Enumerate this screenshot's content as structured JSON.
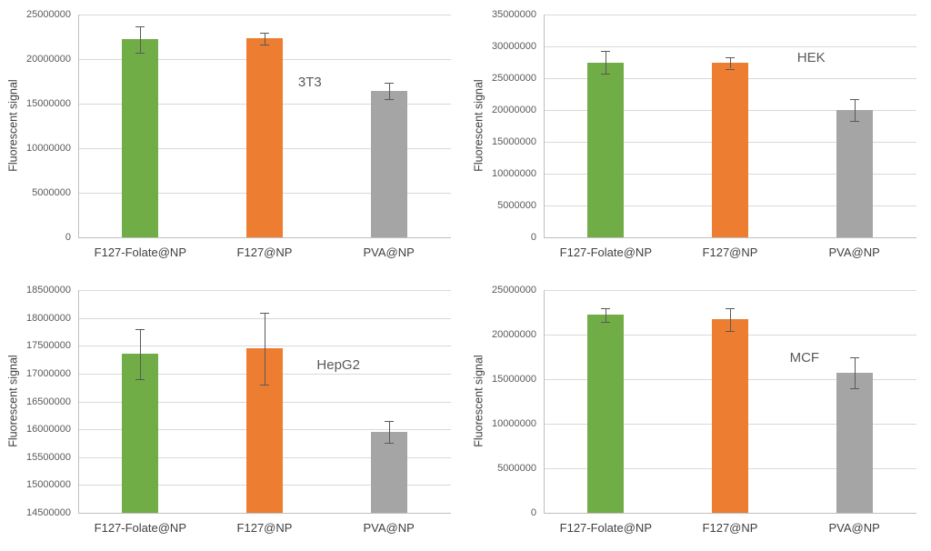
{
  "figure": {
    "background": "#ffffff"
  },
  "colors": {
    "bar_green": "#70ad47",
    "bar_orange": "#ed7d31",
    "bar_gray": "#a5a5a5",
    "gridline": "#d9d9d9",
    "axis_line": "#bfbfbf",
    "error_bar": "#595959",
    "tick_text": "#595959",
    "label_text": "#404040"
  },
  "chart_data": [
    {
      "type": "bar",
      "title": "3T3",
      "ylabel": "Fluorescent signal",
      "categories": [
        "F127-Folate@NP",
        "F127@NP",
        "PVA@NP"
      ],
      "values": [
        22200000,
        22300000,
        16400000
      ],
      "errors": [
        1500000,
        700000,
        900000
      ],
      "ylim": [
        0,
        25000000
      ],
      "ytick_step": 5000000,
      "bar_colors": [
        "#70ad47",
        "#ed7d31",
        "#a5a5a5"
      ],
      "grid": true,
      "legend": "none",
      "label_pos": [
        0.59,
        0.27
      ]
    },
    {
      "type": "bar",
      "title": "HEK",
      "ylabel": "Fluorescent signal",
      "categories": [
        "F127-Folate@NP",
        "F127@NP",
        "PVA@NP"
      ],
      "values": [
        27500000,
        27400000,
        20000000
      ],
      "errors": [
        1800000,
        900000,
        1700000
      ],
      "ylim": [
        0,
        35000000
      ],
      "ytick_step": 5000000,
      "bar_colors": [
        "#70ad47",
        "#ed7d31",
        "#a5a5a5"
      ],
      "grid": true,
      "legend": "none",
      "label_pos": [
        0.68,
        0.16
      ]
    },
    {
      "type": "bar",
      "title": "HepG2",
      "ylabel": "Fluorescent signal",
      "categories": [
        "F127-Folate@NP",
        "F127@NP",
        "PVA@NP"
      ],
      "values": [
        17350000,
        17450000,
        15950000
      ],
      "errors": [
        450000,
        650000,
        200000
      ],
      "ylim": [
        14500000,
        18500000
      ],
      "ytick_step": 500000,
      "bar_colors": [
        "#70ad47",
        "#ed7d31",
        "#a5a5a5"
      ],
      "grid": true,
      "legend": "none",
      "label_pos": [
        0.64,
        0.3
      ]
    },
    {
      "type": "bar",
      "title": "MCF",
      "ylabel": "Fluorescent signal",
      "categories": [
        "F127-Folate@NP",
        "F127@NP",
        "PVA@NP"
      ],
      "values": [
        22200000,
        21700000,
        15700000
      ],
      "errors": [
        800000,
        1300000,
        1700000
      ],
      "ylim": [
        0,
        25000000
      ],
      "ytick_step": 5000000,
      "bar_colors": [
        "#70ad47",
        "#ed7d31",
        "#a5a5a5"
      ],
      "grid": true,
      "legend": "none",
      "label_pos": [
        0.66,
        0.27
      ]
    }
  ]
}
